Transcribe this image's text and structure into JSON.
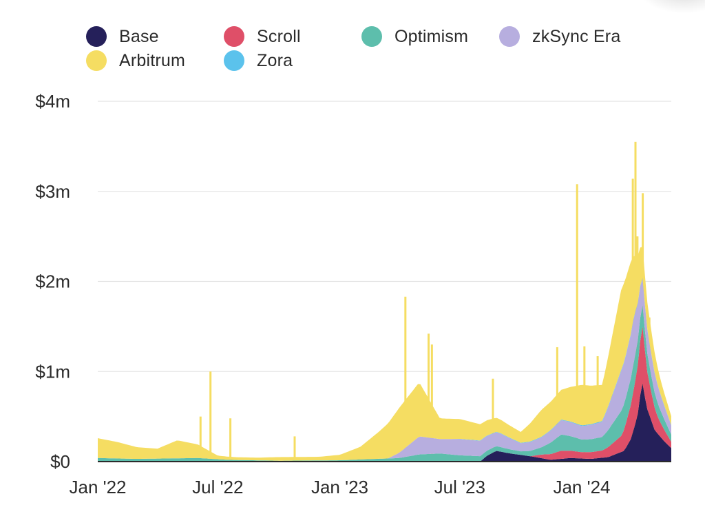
{
  "chart_data": {
    "type": "area",
    "stacked": true,
    "title": "",
    "xlabel": "",
    "ylabel": "",
    "x_ticks": [
      "Jan '22",
      "Jul '22",
      "Jan '23",
      "Jul '23",
      "Jan '24"
    ],
    "y_ticks": [
      "$0",
      "$1m",
      "$2m",
      "$3m",
      "$4m"
    ],
    "ylim": [
      0,
      4000000
    ],
    "xlim": [
      "2022-01-01",
      "2024-05-15"
    ],
    "grid": true,
    "legend": "top",
    "series": [
      {
        "name": "Base",
        "color": "#25205a",
        "points": [
          [
            "2022-01-01",
            0
          ],
          [
            "2023-08-01",
            0
          ],
          [
            "2023-08-10",
            60000
          ],
          [
            "2023-08-25",
            120000
          ],
          [
            "2023-09-15",
            90000
          ],
          [
            "2023-10-15",
            60000
          ],
          [
            "2023-11-15",
            20000
          ],
          [
            "2023-12-15",
            40000
          ],
          [
            "2024-01-15",
            30000
          ],
          [
            "2024-02-10",
            50000
          ],
          [
            "2024-03-05",
            120000
          ],
          [
            "2024-03-15",
            250000
          ],
          [
            "2024-03-25",
            500000
          ],
          [
            "2024-04-01",
            900000
          ],
          [
            "2024-04-08",
            600000
          ],
          [
            "2024-04-20",
            350000
          ],
          [
            "2024-05-05",
            220000
          ],
          [
            "2024-05-15",
            150000
          ]
        ]
      },
      {
        "name": "Scroll",
        "color": "#df4f68",
        "points": [
          [
            "2022-01-01",
            0
          ],
          [
            "2023-10-15",
            0
          ],
          [
            "2023-11-01",
            40000
          ],
          [
            "2023-12-01",
            90000
          ],
          [
            "2024-01-01",
            70000
          ],
          [
            "2024-02-01",
            80000
          ],
          [
            "2024-03-01",
            180000
          ],
          [
            "2024-03-20",
            450000
          ],
          [
            "2024-04-01",
            650000
          ],
          [
            "2024-04-10",
            380000
          ],
          [
            "2024-04-25",
            180000
          ],
          [
            "2024-05-15",
            70000
          ]
        ]
      },
      {
        "name": "Optimism",
        "color": "#5dbeac",
        "points": [
          [
            "2022-01-01",
            40000
          ],
          [
            "2022-03-01",
            30000
          ],
          [
            "2022-06-01",
            40000
          ],
          [
            "2022-07-15",
            20000
          ],
          [
            "2022-10-01",
            10000
          ],
          [
            "2023-01-01",
            15000
          ],
          [
            "2023-04-01",
            40000
          ],
          [
            "2023-05-01",
            80000
          ],
          [
            "2023-06-01",
            90000
          ],
          [
            "2023-07-01",
            70000
          ],
          [
            "2023-08-01",
            60000
          ],
          [
            "2023-09-01",
            50000
          ],
          [
            "2023-10-01",
            40000
          ],
          [
            "2023-11-01",
            80000
          ],
          [
            "2023-12-01",
            180000
          ],
          [
            "2024-01-01",
            140000
          ],
          [
            "2024-02-01",
            150000
          ],
          [
            "2024-03-01",
            280000
          ],
          [
            "2024-03-20",
            300000
          ],
          [
            "2024-04-10",
            200000
          ],
          [
            "2024-05-15",
            80000
          ]
        ]
      },
      {
        "name": "zkSync Era",
        "color": "#b7aedf",
        "points": [
          [
            "2022-01-01",
            0
          ],
          [
            "2023-03-15",
            0
          ],
          [
            "2023-04-01",
            60000
          ],
          [
            "2023-05-01",
            200000
          ],
          [
            "2023-06-01",
            160000
          ],
          [
            "2023-07-01",
            180000
          ],
          [
            "2023-08-01",
            170000
          ],
          [
            "2023-09-01",
            150000
          ],
          [
            "2023-10-01",
            90000
          ],
          [
            "2023-11-01",
            110000
          ],
          [
            "2023-12-01",
            160000
          ],
          [
            "2024-01-01",
            150000
          ],
          [
            "2024-02-01",
            170000
          ],
          [
            "2024-03-01",
            450000
          ],
          [
            "2024-03-20",
            500000
          ],
          [
            "2024-04-01",
            300000
          ],
          [
            "2024-05-15",
            100000
          ]
        ]
      },
      {
        "name": "Zora",
        "color": "#5bc2ec",
        "points": [
          [
            "2022-01-01",
            0
          ],
          [
            "2023-06-15",
            0
          ],
          [
            "2023-07-01",
            3000
          ],
          [
            "2023-12-01",
            6000
          ],
          [
            "2024-03-01",
            9000
          ],
          [
            "2024-05-15",
            5000
          ]
        ]
      },
      {
        "name": "Arbitrum",
        "color": "#f5dd62",
        "points": [
          [
            "2022-01-01",
            220000
          ],
          [
            "2022-02-01",
            180000
          ],
          [
            "2022-03-01",
            130000
          ],
          [
            "2022-04-01",
            110000
          ],
          [
            "2022-05-01",
            200000
          ],
          [
            "2022-06-01",
            150000
          ],
          [
            "2022-07-01",
            40000
          ],
          [
            "2022-08-01",
            30000
          ],
          [
            "2022-09-01",
            30000
          ],
          [
            "2022-10-01",
            40000
          ],
          [
            "2022-11-01",
            40000
          ],
          [
            "2022-12-01",
            40000
          ],
          [
            "2023-01-01",
            60000
          ],
          [
            "2023-02-01",
            140000
          ],
          [
            "2023-03-01",
            300000
          ],
          [
            "2023-04-01",
            500000
          ],
          [
            "2023-05-01",
            600000
          ],
          [
            "2023-06-01",
            230000
          ],
          [
            "2023-07-01",
            220000
          ],
          [
            "2023-08-01",
            180000
          ],
          [
            "2023-09-01",
            150000
          ],
          [
            "2023-10-01",
            120000
          ],
          [
            "2023-11-01",
            300000
          ],
          [
            "2023-12-01",
            330000
          ],
          [
            "2024-01-01",
            450000
          ],
          [
            "2024-02-01",
            400000
          ],
          [
            "2024-03-01",
            900000
          ],
          [
            "2024-03-15",
            800000
          ],
          [
            "2024-04-01",
            350000
          ],
          [
            "2024-05-01",
            150000
          ],
          [
            "2024-05-15",
            100000
          ]
        ]
      }
    ],
    "spikes": [
      [
        "2022-06-20",
        1000000
      ],
      [
        "2022-06-05",
        500000
      ],
      [
        "2022-07-20",
        480000
      ],
      [
        "2022-10-25",
        280000
      ],
      [
        "2023-04-10",
        1830000
      ],
      [
        "2023-05-15",
        1420000
      ],
      [
        "2023-05-20",
        1300000
      ],
      [
        "2023-08-20",
        920000
      ],
      [
        "2023-11-25",
        1270000
      ],
      [
        "2023-12-25",
        3080000
      ],
      [
        "2024-01-05",
        1280000
      ],
      [
        "2024-01-25",
        1170000
      ],
      [
        "2024-02-15",
        1150000
      ],
      [
        "2024-03-18",
        3140000
      ],
      [
        "2024-03-22",
        3550000
      ],
      [
        "2024-03-25",
        2500000
      ],
      [
        "2024-04-02",
        2980000
      ],
      [
        "2024-04-12",
        1600000
      ]
    ]
  },
  "legend": {
    "items": [
      {
        "label": "Base",
        "color": "#25205a"
      },
      {
        "label": "Scroll",
        "color": "#df4f68"
      },
      {
        "label": "Optimism",
        "color": "#5dbeac"
      },
      {
        "label": "zkSync Era",
        "color": "#b7aedf"
      },
      {
        "label": "Arbitrum",
        "color": "#f5dd62"
      },
      {
        "label": "Zora",
        "color": "#5bc2ec"
      }
    ]
  }
}
